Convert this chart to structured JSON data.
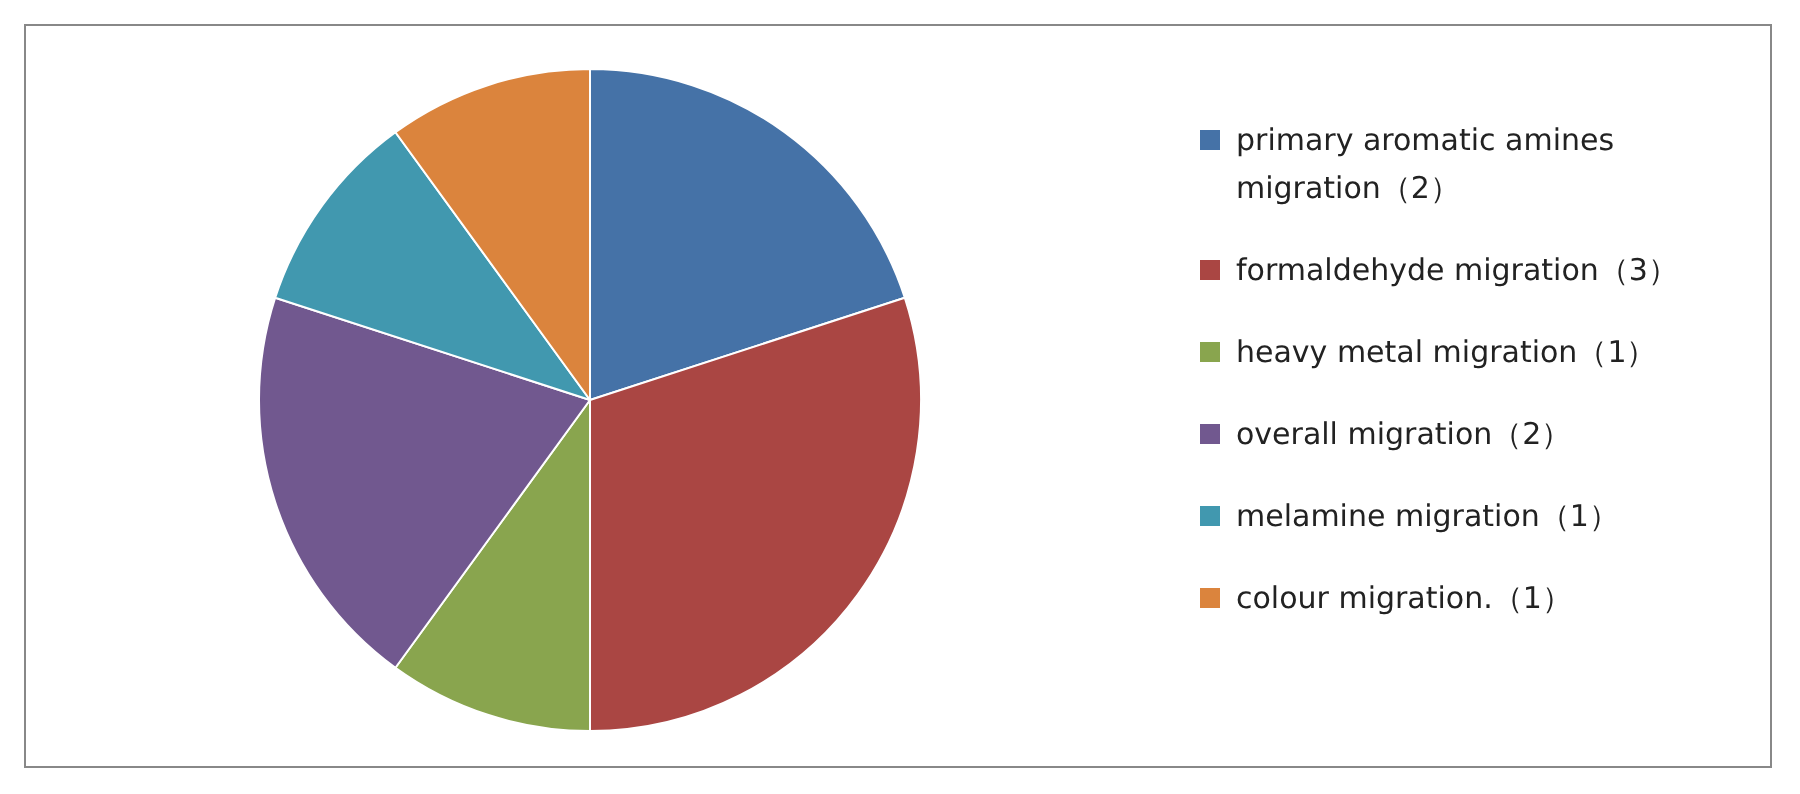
{
  "chart_data": {
    "type": "pie",
    "categories": [
      "primary aromatic amines migration（2）",
      "formaldehyde migration（3）",
      "heavy metal migration（1）",
      "overall migration（2）",
      "melamine migration（1）",
      "colour migration.（1）"
    ],
    "values": [
      2,
      3,
      1,
      2,
      1,
      1
    ],
    "colors": [
      "#4572a7",
      "#aa4643",
      "#89a54e",
      "#71588f",
      "#4198af",
      "#db843d"
    ],
    "legend": "right"
  }
}
